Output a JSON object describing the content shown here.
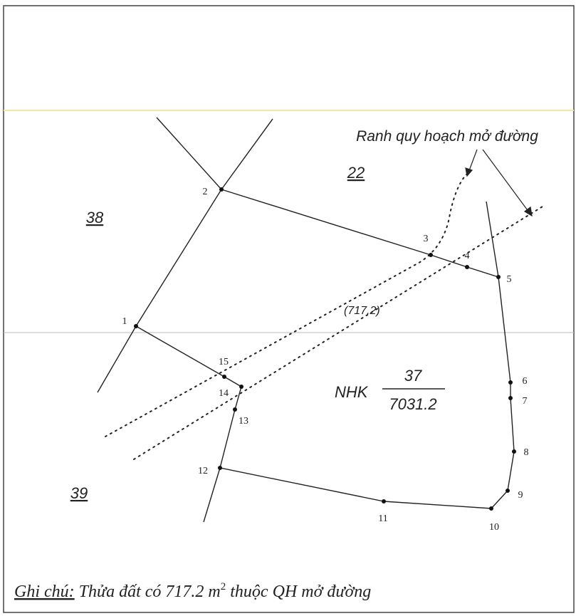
{
  "parcels": [
    "38",
    "22",
    "39"
  ],
  "points": [
    "1",
    "2",
    "3",
    "4",
    "5",
    "6",
    "7",
    "8",
    "9",
    "10",
    "11",
    "12",
    "13",
    "14",
    "15"
  ],
  "road_area": "(717.2)",
  "main_parcel": {
    "code": "NHK",
    "number": "37",
    "area": "7031.2"
  },
  "annotation": "Ranh quy hoạch mở đường",
  "note": {
    "label": "Ghi chú:",
    "text": "Thửa đất có 717.2 m",
    "sup": "2",
    "rest": " thuộc QH mở đường"
  }
}
